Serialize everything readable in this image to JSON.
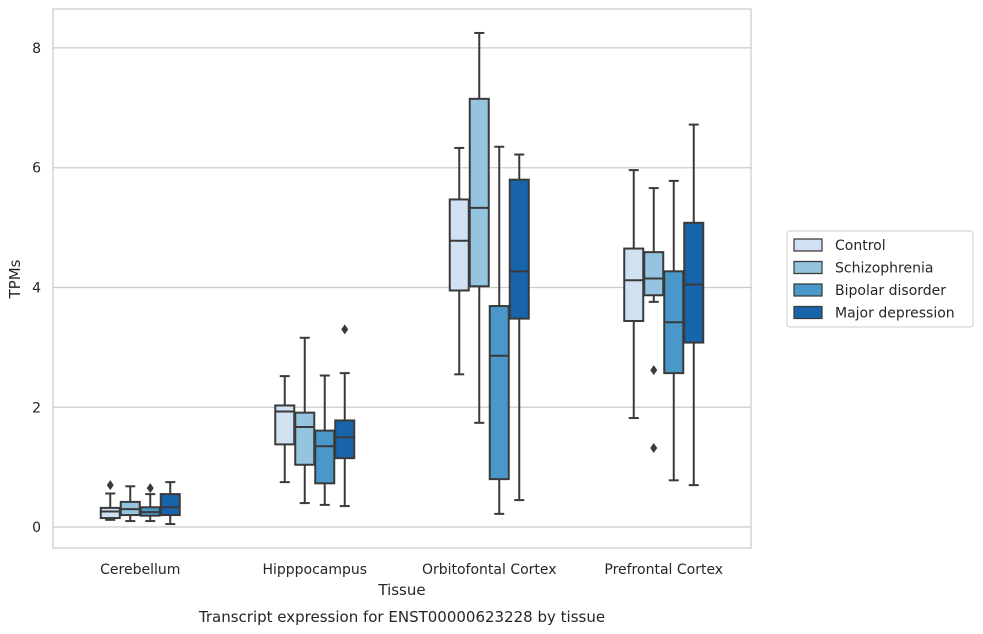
{
  "chart_data": {
    "type": "box",
    "xlabel": "Tissue",
    "ylabel": "TPMs",
    "caption": "Transcript expression for ENST00000623228 by tissue",
    "ylim": [
      -0.35,
      8.65
    ],
    "yticks": [
      0,
      2,
      4,
      6,
      8
    ],
    "grid": "horizontal",
    "legend_position": "right",
    "categories": [
      "Cerebellum",
      "Hipppocampus",
      "Orbitofontal Cortex",
      "Prefrontal Cortex"
    ],
    "series": [
      {
        "name": "Control",
        "color": "#d0e1f2",
        "boxes": [
          {
            "whisker_low": 0.12,
            "q1": 0.15,
            "median": 0.26,
            "q3": 0.32,
            "whisker_high": 0.56,
            "outliers": [
              0.7
            ]
          },
          {
            "whisker_low": 0.75,
            "q1": 1.38,
            "median": 1.93,
            "q3": 2.03,
            "whisker_high": 2.52,
            "outliers": []
          },
          {
            "whisker_low": 2.55,
            "q1": 3.95,
            "median": 4.78,
            "q3": 5.47,
            "whisker_high": 6.33,
            "outliers": []
          },
          {
            "whisker_low": 1.82,
            "q1": 3.44,
            "median": 4.12,
            "q3": 4.65,
            "whisker_high": 5.96,
            "outliers": []
          }
        ]
      },
      {
        "name": "Schizophrenia",
        "color": "#94c4df",
        "boxes": [
          {
            "whisker_low": 0.1,
            "q1": 0.2,
            "median": 0.3,
            "q3": 0.42,
            "whisker_high": 0.68,
            "outliers": []
          },
          {
            "whisker_low": 0.4,
            "q1": 1.04,
            "median": 1.67,
            "q3": 1.91,
            "whisker_high": 3.16,
            "outliers": []
          },
          {
            "whisker_low": 1.74,
            "q1": 4.02,
            "median": 5.33,
            "q3": 7.15,
            "whisker_high": 8.25,
            "outliers": []
          },
          {
            "whisker_low": 3.76,
            "q1": 3.87,
            "median": 4.15,
            "q3": 4.59,
            "whisker_high": 5.66,
            "outliers": [
              2.62,
              1.32
            ]
          }
        ]
      },
      {
        "name": "Bipolar disorder",
        "color": "#4a98c9",
        "boxes": [
          {
            "whisker_low": 0.1,
            "q1": 0.19,
            "median": 0.25,
            "q3": 0.33,
            "whisker_high": 0.55,
            "outliers": [
              0.65
            ]
          },
          {
            "whisker_low": 0.37,
            "q1": 0.73,
            "median": 1.35,
            "q3": 1.61,
            "whisker_high": 2.53,
            "outliers": []
          },
          {
            "whisker_low": 0.22,
            "q1": 0.8,
            "median": 2.86,
            "q3": 3.69,
            "whisker_high": 6.35,
            "outliers": []
          },
          {
            "whisker_low": 0.78,
            "q1": 2.57,
            "median": 3.42,
            "q3": 4.27,
            "whisker_high": 5.78,
            "outliers": []
          }
        ]
      },
      {
        "name": "Major depression",
        "color": "#1764ab",
        "boxes": [
          {
            "whisker_low": 0.05,
            "q1": 0.2,
            "median": 0.33,
            "q3": 0.55,
            "whisker_high": 0.75,
            "outliers": []
          },
          {
            "whisker_low": 0.35,
            "q1": 1.15,
            "median": 1.5,
            "q3": 1.78,
            "whisker_high": 2.57,
            "outliers": [
              3.3
            ]
          },
          {
            "whisker_low": 0.45,
            "q1": 3.48,
            "median": 4.27,
            "q3": 5.8,
            "whisker_high": 6.22,
            "outliers": []
          },
          {
            "whisker_low": 0.7,
            "q1": 3.08,
            "median": 4.05,
            "q3": 5.08,
            "whisker_high": 6.72,
            "outliers": []
          }
        ]
      }
    ]
  }
}
